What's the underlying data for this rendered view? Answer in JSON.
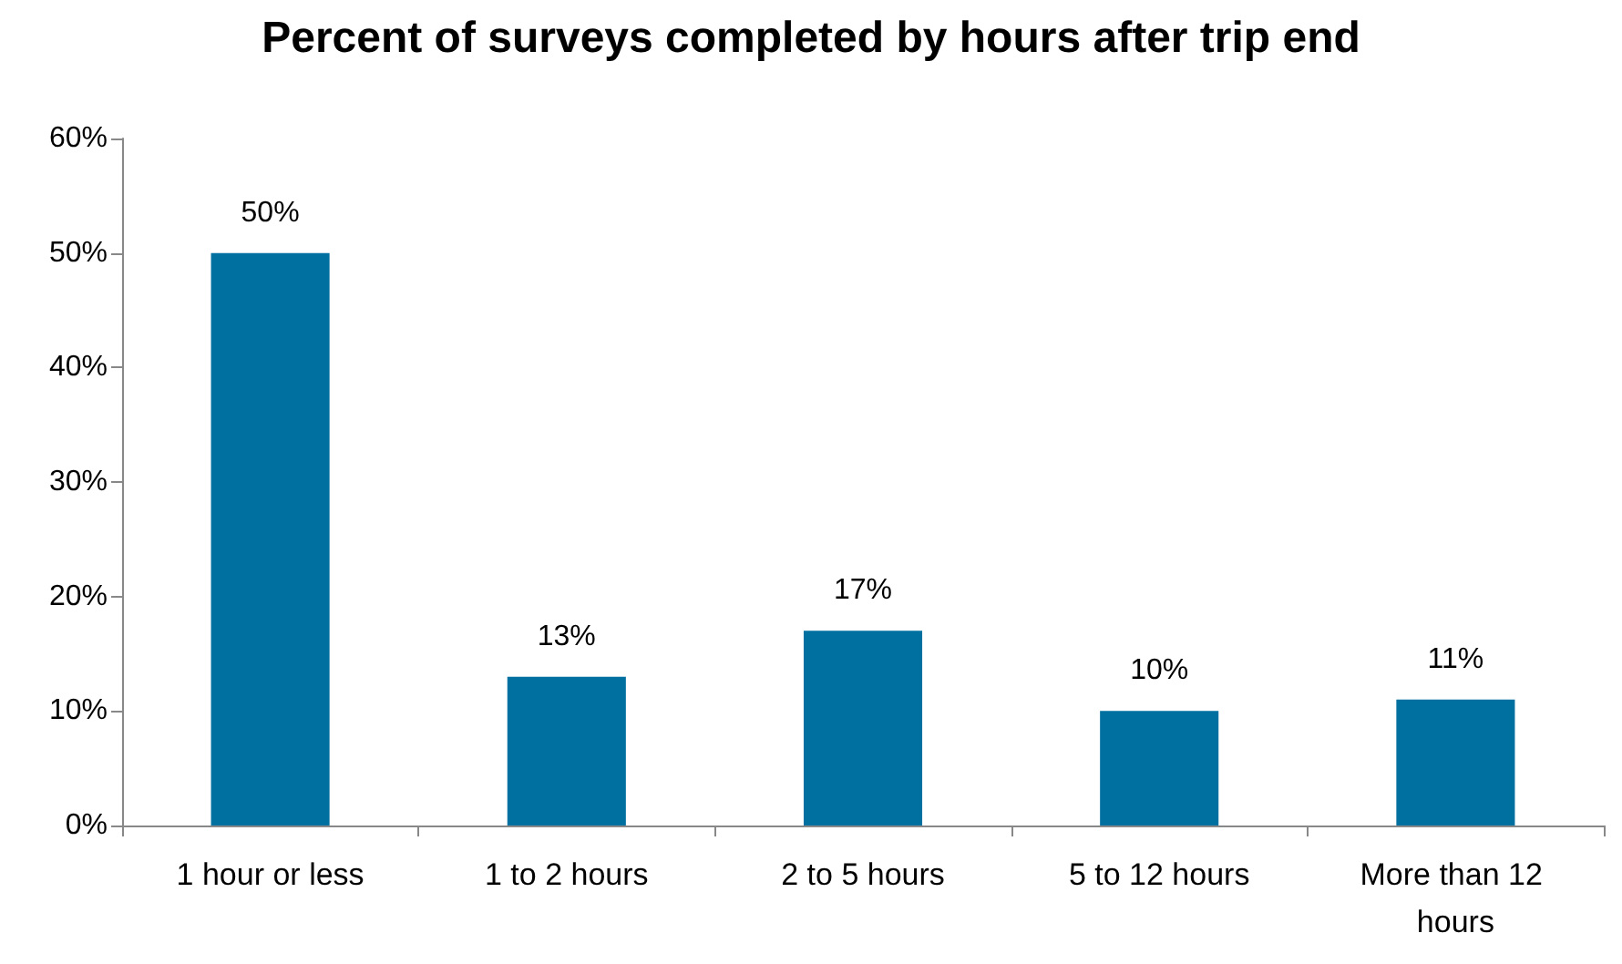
{
  "chart_data": {
    "type": "bar",
    "title": "Percent of surveys completed by hours after trip end",
    "categories": [
      "1 hour or less",
      "1 to 2 hours",
      "2 to 5 hours",
      "5 to 12 hours",
      "More than 12 hours"
    ],
    "values": [
      50,
      13,
      17,
      10,
      11
    ],
    "value_labels": [
      "50%",
      "13%",
      "17%",
      "10%",
      "11%"
    ],
    "color": "#0070a0",
    "ylim": [
      0,
      60
    ],
    "yticks": [
      {
        "value": 0,
        "label": "0%"
      },
      {
        "value": 10,
        "label": "10%"
      },
      {
        "value": 20,
        "label": "20%"
      },
      {
        "value": 30,
        "label": "30%"
      },
      {
        "value": 40,
        "label": "40%"
      },
      {
        "value": 50,
        "label": "50%"
      },
      {
        "value": 60,
        "label": "60%"
      }
    ],
    "grid": false
  }
}
